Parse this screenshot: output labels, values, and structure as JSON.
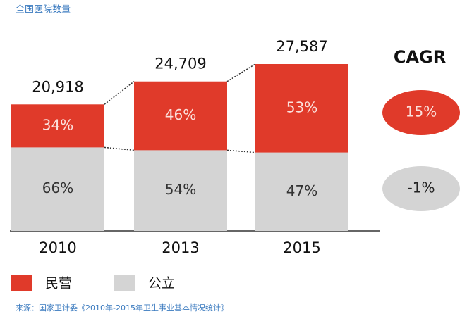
{
  "chart_data": {
    "type": "bar",
    "stacked": true,
    "title": "全国医院数量",
    "categories": [
      "2010",
      "2013",
      "2015"
    ],
    "totals": {
      "values": [
        20918,
        24709,
        27587
      ],
      "value_labels": [
        "20,918",
        "24,709",
        "27,587"
      ]
    },
    "series": [
      {
        "name": "民营",
        "color": "#e03a2a",
        "values": [
          34,
          46,
          53
        ],
        "value_labels": [
          "34%",
          "46%",
          "53%"
        ],
        "cagr": 15,
        "cagr_label": "15%"
      },
      {
        "name": "公立",
        "color": "#d4d4d4",
        "values": [
          66,
          54,
          47
        ],
        "value_labels": [
          "66%",
          "54%",
          "47%"
        ],
        "cagr": -1,
        "cagr_label": "-1%"
      }
    ],
    "cagr_title": "CAGR",
    "source": "来源：国家卫计委《2010年-2015年卫生事业基本情况统计》"
  }
}
